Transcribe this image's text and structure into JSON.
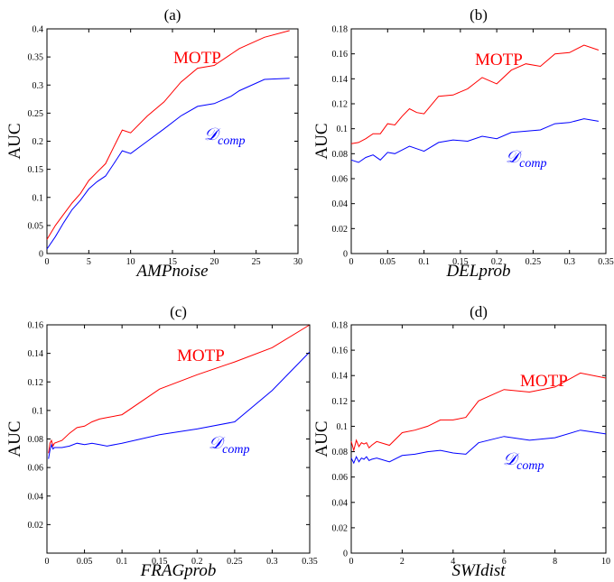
{
  "colors": {
    "motp": "#ff0000",
    "dcomp": "#0000ff"
  },
  "chart_data": [
    {
      "type": "line",
      "title": "(a)",
      "xlabel": "AMPnoise",
      "ylabel": "AUC",
      "xlim": [
        0,
        30
      ],
      "ylim": [
        0,
        0.4
      ],
      "xticks": [
        0,
        5,
        10,
        15,
        20,
        25,
        30
      ],
      "xtick_labels": [
        "0",
        "5",
        "10",
        "15",
        "20",
        "25",
        "30"
      ],
      "yticks": [
        0,
        0.05,
        0.1,
        0.15,
        0.2,
        0.25,
        0.3,
        0.35,
        0.4
      ],
      "ytick_labels": [
        "0",
        "0.05",
        "0.1",
        "0.15",
        "0.2",
        "0.25",
        "0.3",
        "0.35",
        "0.4"
      ],
      "grid": false,
      "annotations": [
        {
          "text": "MOTP",
          "color": "#ff0000"
        },
        {
          "text": "𝒟",
          "sub": "comp",
          "color": "#0000ff"
        }
      ],
      "series": [
        {
          "color": "#ff0000",
          "x": [
            0,
            1,
            2,
            3,
            4,
            5,
            6,
            7,
            8,
            9,
            10,
            12,
            14,
            16,
            18,
            20,
            22,
            23,
            26,
            29
          ],
          "y": [
            0.025,
            0.05,
            0.07,
            0.09,
            0.107,
            0.13,
            0.145,
            0.16,
            0.19,
            0.22,
            0.215,
            0.245,
            0.27,
            0.305,
            0.33,
            0.335,
            0.355,
            0.365,
            0.385,
            0.397
          ]
        },
        {
          "color": "#0000ff",
          "x": [
            0,
            1,
            2,
            3,
            4,
            5,
            6,
            7,
            8,
            9,
            10,
            12,
            14,
            16,
            18,
            20,
            22,
            23,
            26,
            29
          ],
          "y": [
            0.008,
            0.03,
            0.055,
            0.078,
            0.095,
            0.115,
            0.128,
            0.138,
            0.16,
            0.183,
            0.178,
            0.2,
            0.222,
            0.245,
            0.262,
            0.267,
            0.28,
            0.29,
            0.31,
            0.312
          ]
        }
      ]
    },
    {
      "type": "line",
      "title": "(b)",
      "xlabel": "DELprob",
      "ylabel": "AUC",
      "xlim": [
        0,
        0.35
      ],
      "ylim": [
        0,
        0.18
      ],
      "xticks": [
        0,
        0.05,
        0.1,
        0.15,
        0.2,
        0.25,
        0.3,
        0.35
      ],
      "xtick_labels": [
        "0",
        "0.05",
        "0.1",
        "0.15",
        "0.2",
        "0.25",
        "0.3",
        "0.35"
      ],
      "yticks": [
        0,
        0.02,
        0.04,
        0.06,
        0.08,
        0.1,
        0.12,
        0.14,
        0.16,
        0.18
      ],
      "ytick_labels": [
        "0",
        "0.02",
        "0.04",
        "0.06",
        "0.08",
        "0.1",
        "0.12",
        "0.14",
        "0.16",
        "0.18"
      ],
      "grid": false,
      "annotations": [
        {
          "text": "MOTP",
          "color": "#ff0000"
        },
        {
          "text": "𝒟",
          "sub": "comp",
          "color": "#0000ff"
        }
      ],
      "series": [
        {
          "color": "#ff0000",
          "x": [
            0,
            0.01,
            0.02,
            0.03,
            0.04,
            0.05,
            0.06,
            0.07,
            0.08,
            0.09,
            0.1,
            0.12,
            0.14,
            0.16,
            0.18,
            0.2,
            0.22,
            0.24,
            0.26,
            0.28,
            0.3,
            0.32,
            0.34
          ],
          "y": [
            0.088,
            0.089,
            0.092,
            0.096,
            0.096,
            0.104,
            0.103,
            0.11,
            0.116,
            0.113,
            0.112,
            0.126,
            0.127,
            0.132,
            0.141,
            0.136,
            0.147,
            0.152,
            0.15,
            0.16,
            0.161,
            0.167,
            0.163
          ]
        },
        {
          "color": "#0000ff",
          "x": [
            0,
            0.01,
            0.02,
            0.03,
            0.04,
            0.05,
            0.06,
            0.07,
            0.08,
            0.09,
            0.1,
            0.12,
            0.14,
            0.16,
            0.18,
            0.2,
            0.22,
            0.24,
            0.26,
            0.28,
            0.3,
            0.32,
            0.34
          ],
          "y": [
            0.075,
            0.073,
            0.077,
            0.079,
            0.075,
            0.081,
            0.08,
            0.083,
            0.086,
            0.084,
            0.082,
            0.089,
            0.091,
            0.09,
            0.094,
            0.092,
            0.097,
            0.098,
            0.099,
            0.104,
            0.105,
            0.108,
            0.106
          ]
        }
      ]
    },
    {
      "type": "line",
      "title": "(c)",
      "xlabel": "FRAGprob",
      "ylabel": "AUC",
      "xlim": [
        0,
        0.35
      ],
      "ylim": [
        0,
        0.16
      ],
      "xticks": [
        0,
        0.05,
        0.1,
        0.15,
        0.2,
        0.25,
        0.3,
        0.35
      ],
      "xtick_labels": [
        "0",
        "0.05",
        "0.1",
        "0.15",
        "0.2",
        "0.25",
        "0.3",
        "0.35"
      ],
      "yticks": [
        0.02,
        0.04,
        0.06,
        0.08,
        0.1,
        0.12,
        0.14,
        0.16
      ],
      "ytick_labels": [
        "0.02",
        "0.04",
        "0.06",
        "0.08",
        "0.1",
        "0.12",
        "0.14",
        "0.16"
      ],
      "grid": false,
      "annotations": [
        {
          "text": "MOTP",
          "color": "#ff0000"
        },
        {
          "text": "𝒟",
          "sub": "comp",
          "color": "#0000ff"
        }
      ],
      "series": [
        {
          "color": "#ff0000",
          "x": [
            0.002,
            0.004,
            0.006,
            0.008,
            0.01,
            0.02,
            0.03,
            0.04,
            0.05,
            0.06,
            0.07,
            0.08,
            0.1,
            0.15,
            0.2,
            0.25,
            0.3,
            0.35
          ],
          "y": [
            0.07,
            0.077,
            0.079,
            0.075,
            0.077,
            0.079,
            0.084,
            0.088,
            0.089,
            0.092,
            0.094,
            0.095,
            0.097,
            0.115,
            0.125,
            0.134,
            0.144,
            0.16
          ]
        },
        {
          "color": "#0000ff",
          "x": [
            0.002,
            0.004,
            0.006,
            0.008,
            0.01,
            0.02,
            0.03,
            0.04,
            0.05,
            0.06,
            0.07,
            0.08,
            0.1,
            0.15,
            0.2,
            0.25,
            0.3,
            0.35
          ],
          "y": [
            0.066,
            0.072,
            0.076,
            0.073,
            0.074,
            0.074,
            0.075,
            0.077,
            0.076,
            0.077,
            0.076,
            0.075,
            0.077,
            0.083,
            0.087,
            0.092,
            0.114,
            0.141
          ]
        }
      ]
    },
    {
      "type": "line",
      "title": "(d)",
      "xlabel": "SWIdist",
      "ylabel": "AUC",
      "xlim": [
        0,
        10
      ],
      "ylim": [
        0,
        0.18
      ],
      "xticks": [
        0,
        2,
        4,
        6,
        8,
        10
      ],
      "xtick_labels": [
        "0",
        "2",
        "4",
        "6",
        "8",
        "10"
      ],
      "yticks": [
        0,
        0.02,
        0.04,
        0.06,
        0.08,
        0.1,
        0.12,
        0.14,
        0.16,
        0.18
      ],
      "ytick_labels": [
        "0",
        "0.02",
        "0.04",
        "0.06",
        "0.08",
        "0.1",
        "0.12",
        "0.14",
        "0.16",
        "0.18"
      ],
      "grid": false,
      "annotations": [
        {
          "text": "MOTP",
          "color": "#ff0000"
        },
        {
          "text": "𝒟",
          "sub": "comp",
          "color": "#0000ff"
        }
      ],
      "series": [
        {
          "color": "#ff0000",
          "x": [
            0,
            0.1,
            0.2,
            0.3,
            0.4,
            0.5,
            0.6,
            0.7,
            0.8,
            1,
            1.5,
            2,
            2.5,
            3,
            3.5,
            4,
            4.5,
            5,
            6,
            7,
            8,
            9,
            10
          ],
          "y": [
            0.088,
            0.081,
            0.089,
            0.084,
            0.087,
            0.086,
            0.087,
            0.083,
            0.085,
            0.088,
            0.085,
            0.095,
            0.097,
            0.1,
            0.105,
            0.105,
            0.107,
            0.12,
            0.129,
            0.127,
            0.131,
            0.142,
            0.138
          ]
        },
        {
          "color": "#0000ff",
          "x": [
            0,
            0.1,
            0.2,
            0.3,
            0.4,
            0.5,
            0.6,
            0.7,
            0.8,
            1,
            1.5,
            2,
            2.5,
            3,
            3.5,
            4,
            4.5,
            5,
            6,
            7,
            8,
            9,
            10
          ],
          "y": [
            0.075,
            0.071,
            0.076,
            0.072,
            0.075,
            0.074,
            0.076,
            0.073,
            0.074,
            0.075,
            0.072,
            0.077,
            0.078,
            0.08,
            0.081,
            0.079,
            0.078,
            0.087,
            0.092,
            0.089,
            0.091,
            0.097,
            0.094
          ]
        }
      ]
    }
  ]
}
